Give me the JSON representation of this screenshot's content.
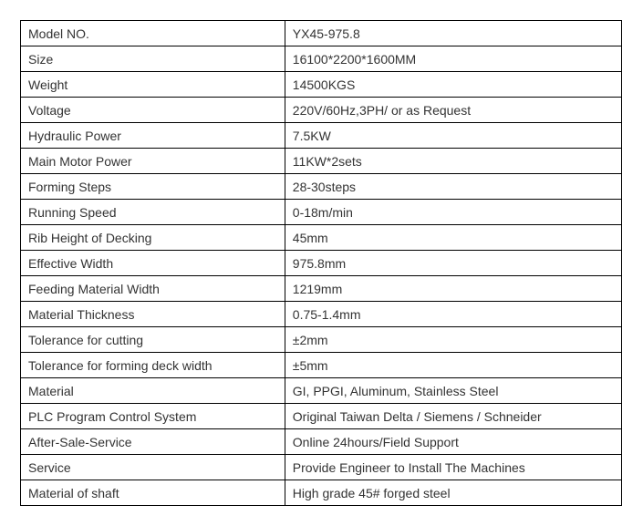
{
  "table": {
    "border_color": "#000000",
    "background_color": "#ffffff",
    "text_color": "#333333",
    "font_size": 14,
    "label_width": 290,
    "value_width": 370,
    "rows": [
      {
        "label": "Model NO.",
        "value": "YX45-975.8"
      },
      {
        "label": "Size",
        "value": "16100*2200*1600MM"
      },
      {
        "label": "Weight",
        "value": "14500KGS"
      },
      {
        "label": "Voltage",
        "value": "220V/60Hz,3PH/ or as Request"
      },
      {
        "label": "Hydraulic Power",
        "value": "7.5KW"
      },
      {
        "label": "Main Motor Power",
        "value": "11KW*2sets"
      },
      {
        "label": "Forming Steps",
        "value": "28-30steps"
      },
      {
        "label": "Running Speed",
        "value": "0-18m/min"
      },
      {
        "label": "Rib Height of Decking",
        "value": "45mm"
      },
      {
        "label": "Effective Width",
        "value": "975.8mm"
      },
      {
        "label": "Feeding Material Width",
        "value": "1219mm"
      },
      {
        "label": "Material Thickness",
        "value": "0.75-1.4mm"
      },
      {
        "label": "Tolerance for cutting",
        "value": "±2mm"
      },
      {
        "label": "Tolerance for forming deck width",
        "value": "±5mm"
      },
      {
        "label": "Material",
        "value": "GI, PPGI, Aluminum, Stainless Steel"
      },
      {
        "label": "PLC Program Control System",
        "value": "Original Taiwan Delta / Siemens / Schneider"
      },
      {
        "label": "After-Sale-Service",
        "value": "Online 24hours/Field Support"
      },
      {
        "label": "Service",
        "value": "Provide Engineer to Install The Machines"
      },
      {
        "label": "Material of shaft",
        "value": "High grade 45# forged steel"
      }
    ]
  }
}
